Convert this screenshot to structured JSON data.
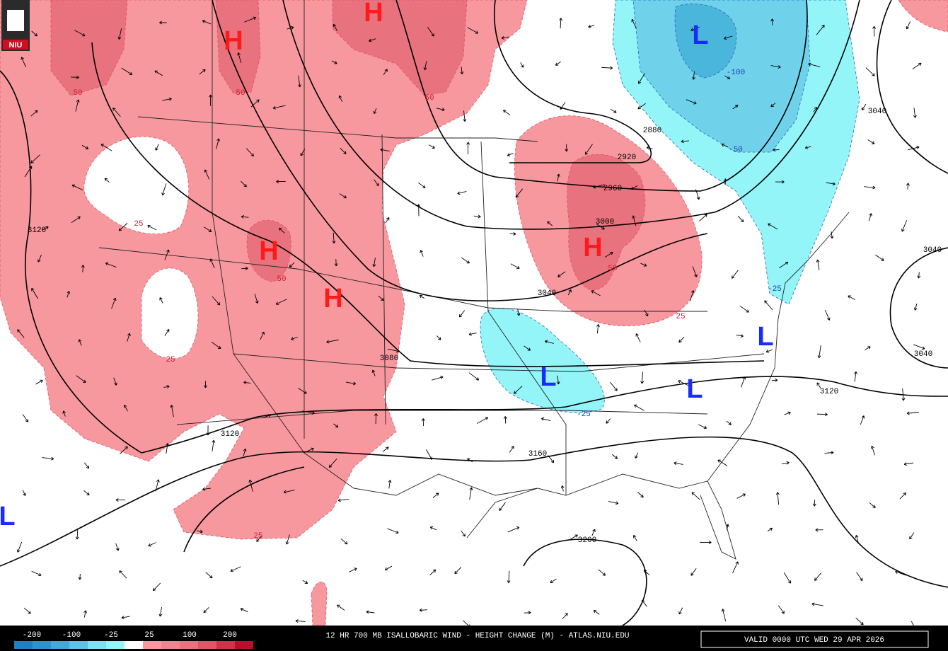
{
  "logo": "NIU",
  "pressure_centers": {
    "highs": [
      "H",
      "H",
      "H",
      "H",
      "H"
    ],
    "lows": [
      "L",
      "L",
      "L",
      "L",
      "L"
    ]
  },
  "contour_labels": [
    "2880",
    "2920",
    "2960",
    "3000",
    "3040",
    "3080",
    "3120",
    "3120",
    "3160",
    "3200",
    "3040",
    "3040",
    "3120",
    "3040"
  ],
  "height_change_labels": {
    "positive": [
      "50",
      "50",
      "50",
      "25",
      "50",
      "25",
      "50",
      "25",
      "25"
    ],
    "negative": [
      "-25",
      "-100",
      "-50",
      "-25"
    ]
  },
  "legend": {
    "labels": [
      "-200",
      "-100",
      "-25",
      "25",
      "100",
      "200"
    ]
  },
  "footer": {
    "title": "12 HR 700 MB ISALLOBARIC WIND - HEIGHT CHANGE (M) - ATLAS.NIU.EDU",
    "valid": "VALID 0000 UTC WED 29 APR 2026"
  }
}
